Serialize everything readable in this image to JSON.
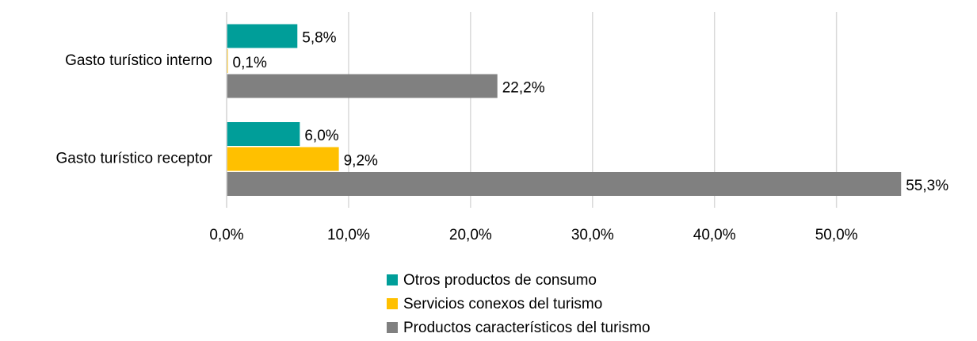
{
  "chart_data": {
    "type": "barh",
    "categories": [
      "Gasto turístico interno",
      "Gasto turístico receptor"
    ],
    "series": [
      {
        "name": "Otros productos de consumo",
        "color": "#009e99",
        "values": [
          5.8,
          6.0
        ],
        "value_labels": [
          "5,8%",
          "6,0%"
        ]
      },
      {
        "name": "Servicios conexos del turismo",
        "color": "#ffc000",
        "values": [
          0.1,
          9.2
        ],
        "value_labels": [
          "0,1%",
          "9,2%"
        ]
      },
      {
        "name": "Productos característicos del turismo",
        "color": "#808080",
        "values": [
          22.2,
          55.3
        ],
        "value_labels": [
          "22,2%",
          "55,3%"
        ]
      }
    ],
    "xlim": [
      0,
      56
    ],
    "xticks": [
      {
        "value": 0,
        "label": "0,0%"
      },
      {
        "value": 10,
        "label": "10,0%"
      },
      {
        "value": 20,
        "label": "20,0%"
      },
      {
        "value": 30,
        "label": "30,0%"
      },
      {
        "value": 40,
        "label": "40,0%"
      },
      {
        "value": 50,
        "label": "50,0%"
      }
    ],
    "grid": true,
    "legend": "bottom"
  }
}
